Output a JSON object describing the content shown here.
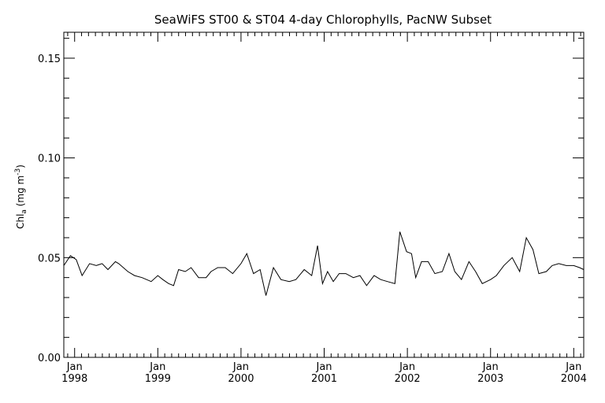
{
  "chart_data": {
    "type": "line",
    "title": "SeaWiFS ST00 & ST04 4-day Chlorophylls, PacNW Subset",
    "ylabel": {
      "prefix": "Chl",
      "subscript": "a",
      "units_open": " (mg m",
      "superscript": "-3",
      "units_close": ")"
    },
    "xlim": [
      1997.87,
      2004.12
    ],
    "ylim": [
      0.0,
      0.163
    ],
    "y_ticks": [
      0.0,
      0.05,
      0.1,
      0.15
    ],
    "y_tick_labels": [
      "0.00",
      "0.05",
      "0.10",
      "0.15"
    ],
    "x_ticks": [
      {
        "value": 1998,
        "month": "Jan",
        "year": "1998"
      },
      {
        "value": 1999,
        "month": "Jan",
        "year": "1999"
      },
      {
        "value": 2000,
        "month": "Jan",
        "year": "2000"
      },
      {
        "value": 2001,
        "month": "Jan",
        "year": "2001"
      },
      {
        "value": 2002,
        "month": "Jan",
        "year": "2002"
      },
      {
        "value": 2003,
        "month": "Jan",
        "year": "2003"
      },
      {
        "value": 2004,
        "month": "Jan",
        "year": "2004"
      }
    ],
    "grid": false,
    "series": [
      {
        "x": [
          1997.87,
          1997.95,
          1998.02,
          1998.09,
          1998.18,
          1998.26,
          1998.33,
          1998.4,
          1998.49,
          1998.53,
          1998.64,
          1998.72,
          1998.81,
          1998.92,
          1999.0,
          1999.06,
          1999.13,
          1999.19,
          1999.25,
          1999.33,
          1999.4,
          1999.49,
          1999.58,
          1999.64,
          1999.72,
          1999.81,
          1999.9,
          2000.0,
          2000.07,
          2000.15,
          2000.23,
          2000.3,
          2000.39,
          2000.48,
          2000.58,
          2000.66,
          2000.76,
          2000.85,
          2000.92,
          2000.98,
          2001.04,
          2001.11,
          2001.18,
          2001.26,
          2001.35,
          2001.43,
          2001.51,
          2001.6,
          2001.68,
          2001.76,
          2001.85,
          2001.91,
          2001.99,
          2002.05,
          2002.1,
          2002.17,
          2002.25,
          2002.33,
          2002.42,
          2002.5,
          2002.57,
          2002.65,
          2002.74,
          2002.82,
          2002.9,
          2003.0,
          2003.07,
          2003.16,
          2003.26,
          2003.35,
          2003.43,
          2003.51,
          2003.58,
          2003.67,
          2003.74,
          2003.82,
          2003.91,
          2004.0,
          2004.07,
          2004.12
        ],
        "y": [
          0.046,
          0.051,
          0.049,
          0.041,
          0.047,
          0.046,
          0.047,
          0.044,
          0.048,
          0.047,
          0.043,
          0.041,
          0.04,
          0.038,
          0.041,
          0.039,
          0.037,
          0.036,
          0.044,
          0.043,
          0.045,
          0.04,
          0.04,
          0.043,
          0.045,
          0.045,
          0.042,
          0.047,
          0.052,
          0.042,
          0.044,
          0.031,
          0.045,
          0.039,
          0.038,
          0.039,
          0.044,
          0.041,
          0.056,
          0.037,
          0.043,
          0.038,
          0.042,
          0.042,
          0.04,
          0.041,
          0.036,
          0.041,
          0.039,
          0.038,
          0.037,
          0.063,
          0.053,
          0.052,
          0.04,
          0.048,
          0.048,
          0.042,
          0.043,
          0.052,
          0.043,
          0.039,
          0.048,
          0.043,
          0.037,
          0.039,
          0.041,
          0.046,
          0.05,
          0.043,
          0.06,
          0.054,
          0.042,
          0.043,
          0.046,
          0.047,
          0.046,
          0.046,
          0.045,
          0.044
        ]
      }
    ]
  }
}
